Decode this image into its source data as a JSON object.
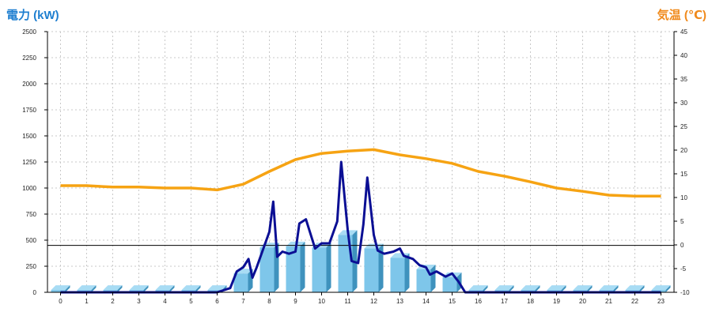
{
  "chart_data": {
    "type": "bar",
    "title": "",
    "ylabel_left": "電力 (kW)",
    "ylabel_right": "気温 (℃)",
    "categories": [
      "0",
      "1",
      "2",
      "3",
      "4",
      "5",
      "6",
      "7",
      "8",
      "9",
      "10",
      "11",
      "12",
      "13",
      "14",
      "15",
      "16",
      "17",
      "18",
      "19",
      "20",
      "21",
      "22",
      "23"
    ],
    "y_left_ticks": [
      "0",
      "250",
      "500",
      "750",
      "1000",
      "1250",
      "1500",
      "1750",
      "2000",
      "2250",
      "2500"
    ],
    "y_right_ticks": [
      "-10",
      "-5",
      "0",
      "5",
      "10",
      "15",
      "20",
      "25",
      "30",
      "35",
      "40",
      "45"
    ],
    "ylim_left": [
      0,
      2500
    ],
    "ylim_right": [
      -10,
      45
    ],
    "grid": true,
    "bar_values": [
      22,
      22,
      22,
      22,
      22,
      22,
      22,
      180,
      430,
      440,
      430,
      550,
      420,
      330,
      220,
      145,
      22,
      22,
      22,
      22,
      22,
      22,
      22,
      22
    ],
    "power_line": {
      "x": [
        0,
        1,
        2,
        3,
        4,
        5,
        6,
        6.5,
        6.75,
        7,
        7.2,
        7.35,
        7.5,
        7.8,
        8,
        8.15,
        8.3,
        8.5,
        8.75,
        9,
        9.15,
        9.4,
        9.75,
        10,
        10.3,
        10.6,
        10.75,
        11,
        11.15,
        11.4,
        11.6,
        11.75,
        12,
        12.15,
        12.4,
        12.75,
        13,
        13.15,
        13.5,
        13.75,
        14,
        14.15,
        14.4,
        14.75,
        15,
        15.25,
        15.5,
        16,
        17,
        18,
        19,
        20,
        21,
        22,
        23
      ],
      "y": [
        0,
        0,
        0,
        0,
        0,
        0,
        0,
        40,
        200,
        240,
        320,
        140,
        230,
        440,
        580,
        870,
        340,
        390,
        370,
        390,
        660,
        700,
        420,
        470,
        470,
        680,
        1250,
        600,
        300,
        280,
        650,
        1100,
        550,
        400,
        370,
        390,
        420,
        350,
        320,
        260,
        240,
        170,
        200,
        150,
        180,
        100,
        0,
        0,
        0,
        0,
        0,
        0,
        0,
        0,
        0
      ]
    },
    "temp_line": {
      "x": [
        0,
        1,
        2,
        3,
        4,
        5,
        6,
        7,
        8,
        9,
        10,
        11,
        12,
        13,
        14,
        15,
        16,
        17,
        18,
        19,
        20,
        21,
        22,
        23
      ],
      "y": [
        12.5,
        12.5,
        12.2,
        12.2,
        12.0,
        12.0,
        11.6,
        12.8,
        15.5,
        18.0,
        19.3,
        19.8,
        20.1,
        19.0,
        18.2,
        17.2,
        15.5,
        14.5,
        13.3,
        12.0,
        11.3,
        10.5,
        10.3,
        10.3
      ]
    },
    "reference_line_left": 450,
    "colors": {
      "bar_front": "#7ec6ea",
      "bar_top": "#a8dcf4",
      "bar_side": "#3f92bd",
      "power_line": "#0b0f94",
      "temp_line": "#f6a313",
      "grid": "#c8c8c8",
      "axis": "#000000",
      "left_label": "#1f7fd0",
      "right_label": "#f08a1c"
    }
  }
}
